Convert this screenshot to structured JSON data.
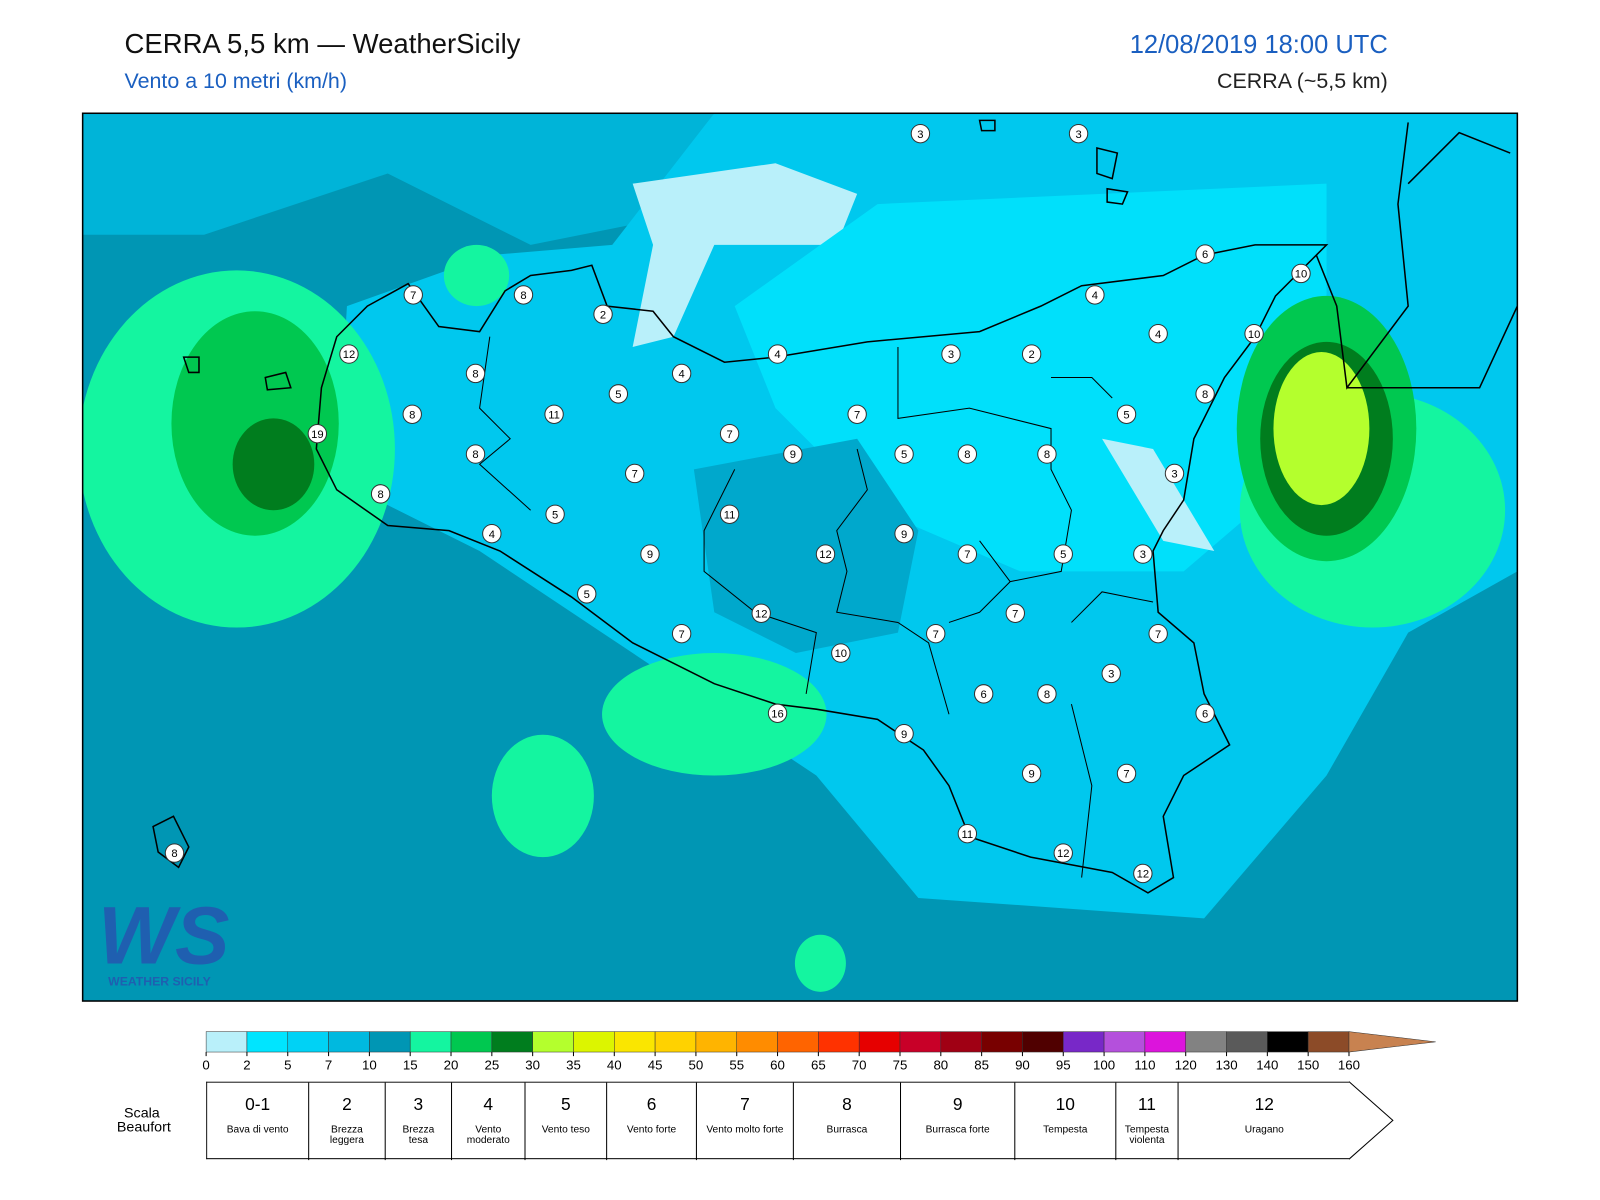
{
  "header": {
    "title": "CERRA 5,5 km — WeatherSicily",
    "subtitle": "Vento a 10 metri (km/h)",
    "datetime": "12/08/2019 18:00 UTC",
    "model": "CERRA (~5,5 km)"
  },
  "map": {
    "stations": [
      3,
      3,
      6,
      10,
      7,
      8,
      2,
      4,
      4,
      10,
      12,
      4,
      3,
      2,
      8,
      4,
      5,
      8,
      8,
      11,
      7,
      5,
      19,
      7,
      8,
      9,
      5,
      8,
      8,
      7,
      3,
      8,
      11,
      5,
      4,
      9,
      9,
      12,
      7,
      5,
      3,
      5,
      12,
      7,
      7,
      7,
      7,
      10,
      3,
      6,
      8,
      16,
      6,
      9,
      9,
      7,
      8,
      11,
      12,
      12
    ]
  },
  "logo": {
    "mark": "WS",
    "text": "WEATHER SICILY"
  },
  "colorbar": {
    "ticks": [
      0,
      2,
      5,
      7,
      10,
      15,
      20,
      25,
      30,
      35,
      40,
      45,
      50,
      55,
      60,
      65,
      70,
      75,
      80,
      85,
      90,
      95,
      100,
      110,
      120,
      130,
      140,
      150,
      160
    ],
    "colors": [
      "#b9f0fa",
      "#00e5ff",
      "#00d2f5",
      "#00b9df",
      "#0096b4",
      "#14f5a0",
      "#00c850",
      "#007d1e",
      "#b4ff2d",
      "#dcf500",
      "#fae600",
      "#ffd200",
      "#ffb400",
      "#ff8c00",
      "#ff6400",
      "#ff3200",
      "#e60000",
      "#c80028",
      "#a00014",
      "#780000",
      "#500000",
      "#7828c8",
      "#b450dc",
      "#dc14dc",
      "#828282",
      "#5a5a5a",
      "#000000",
      "#8c4b28"
    ],
    "arrow_color": "#c88250"
  },
  "beaufort": {
    "label": "Scala Beaufort",
    "levels": [
      {
        "force": "0-1",
        "name": "Bava di vento"
      },
      {
        "force": "2",
        "name": "Brezza leggera"
      },
      {
        "force": "3",
        "name": "Brezza tesa"
      },
      {
        "force": "4",
        "name": "Vento moderato"
      },
      {
        "force": "5",
        "name": "Vento teso"
      },
      {
        "force": "6",
        "name": "Vento forte"
      },
      {
        "force": "7",
        "name": "Vento molto forte"
      },
      {
        "force": "8",
        "name": "Burrasca"
      },
      {
        "force": "9",
        "name": "Burrasca forte"
      },
      {
        "force": "10",
        "name": "Tempesta"
      },
      {
        "force": "11",
        "name": "Tempesta violenta"
      },
      {
        "force": "12",
        "name": "Uragano"
      }
    ]
  }
}
